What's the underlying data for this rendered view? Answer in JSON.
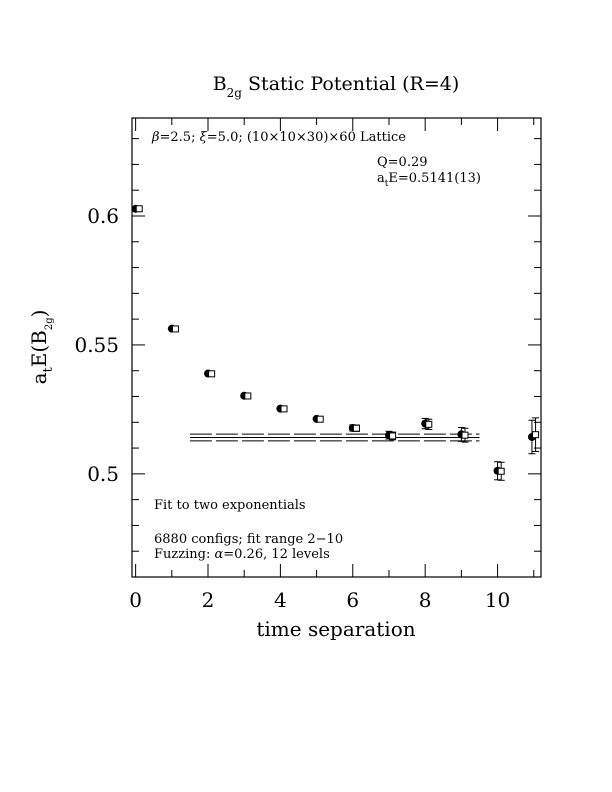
{
  "chart_data": {
    "type": "scatter",
    "title": {
      "prefix": "B",
      "subscript": "2g",
      "rest": " Static Potential (R=4)"
    },
    "xlabel": "time separation",
    "ylabel": {
      "prefix": "a",
      "sub1": "t",
      "middle": "E(B",
      "sub2": "2g",
      "suffix": ")"
    },
    "xlim": [
      -0.1,
      11.2
    ],
    "ylim": [
      0.46,
      0.638
    ],
    "x_ticks": [
      0,
      2,
      4,
      6,
      8,
      10
    ],
    "x_tick_labels": [
      "0",
      "2",
      "4",
      "6",
      "8",
      "10"
    ],
    "y_ticks": [
      0.5,
      0.55,
      0.6
    ],
    "y_tick_labels": [
      "0.5",
      "0.55",
      "0.6"
    ],
    "grid": false,
    "legend": "none",
    "series": [
      {
        "marker": "filled-circle",
        "x": [
          0,
          1,
          2,
          3,
          4,
          5,
          6,
          7,
          8,
          9,
          10,
          10.95
        ],
        "y": [
          0.6028,
          0.5563,
          0.5389,
          0.5303,
          0.5253,
          0.5213,
          0.5178,
          0.515,
          0.5195,
          0.5153,
          0.5012,
          0.5143
        ],
        "err": [
          0.0005,
          0.0006,
          0.0006,
          0.0007,
          0.0008,
          0.001,
          0.0012,
          0.0015,
          0.002,
          0.0027,
          0.0035,
          0.0065
        ]
      },
      {
        "marker": "open-square",
        "x": [
          0.1,
          1.1,
          2.1,
          3.1,
          4.1,
          5.1,
          6.1,
          7.1,
          8.1,
          9.1,
          10.1,
          11.05
        ],
        "y": [
          0.6028,
          0.5562,
          0.5388,
          0.5302,
          0.5252,
          0.5212,
          0.5177,
          0.5147,
          0.5192,
          0.515,
          0.501,
          0.5152
        ],
        "err": [
          0.0005,
          0.0006,
          0.0006,
          0.0007,
          0.0008,
          0.001,
          0.0012,
          0.0015,
          0.002,
          0.0027,
          0.0035,
          0.0065
        ]
      }
    ],
    "fit_band": {
      "x_range": [
        1.5,
        9.5
      ],
      "center": 0.5141,
      "upper": 0.5154,
      "lower": 0.5128
    },
    "annotations": {
      "lattice": {
        "beta_sym": "β",
        "beta_rest": "=2.5; ",
        "xi_sym": "ξ",
        "xi_rest": "=5.0; (10×10×30)×60 Lattice"
      },
      "q_value": "Q=0.29",
      "energy": {
        "prefix": "a",
        "sub": "t",
        "rest": "E=0.5141(13)"
      },
      "fit_note": "Fit to two exponentials",
      "configs": "6880 configs; fit range 2−10",
      "fuzzing": {
        "prefix": "Fuzzing: ",
        "alpha_sym": "α",
        "rest": "=0.26, 12 levels"
      }
    }
  }
}
